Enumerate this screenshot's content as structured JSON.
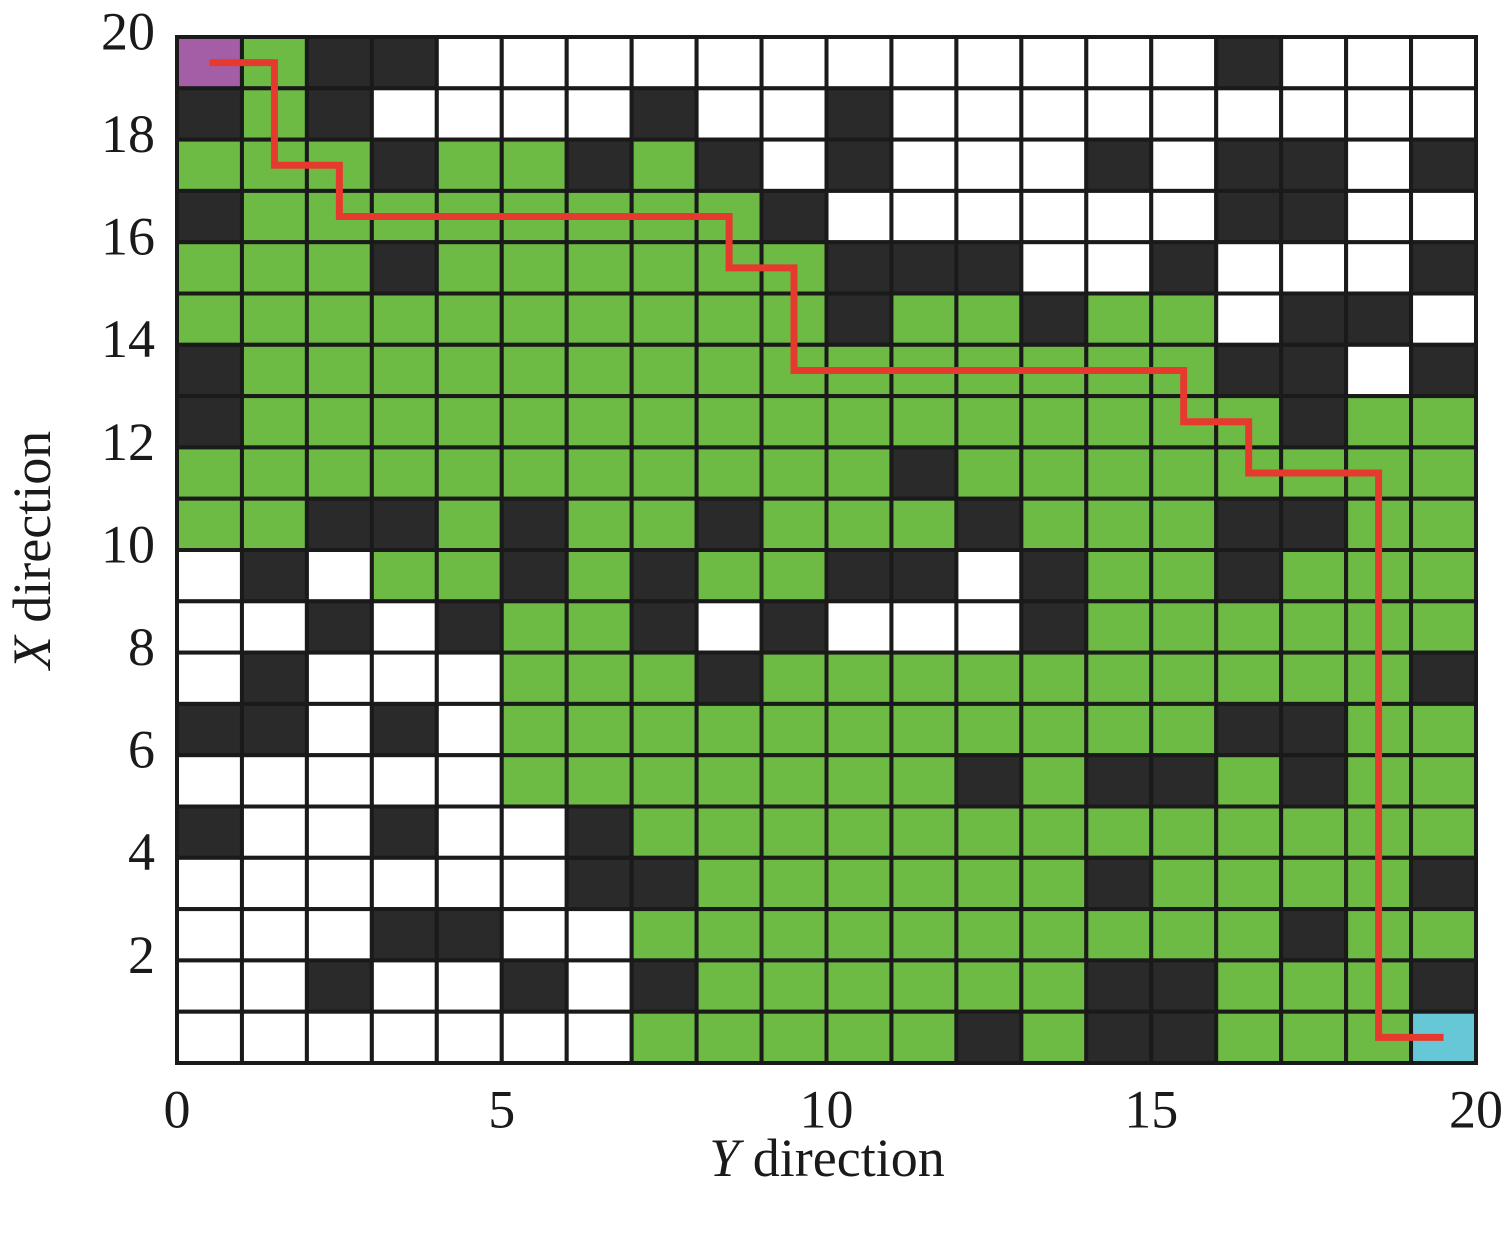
{
  "chart_data": {
    "type": "grid",
    "xlabel": "Y direction",
    "ylabel": "X direction",
    "xlim": [
      0,
      20
    ],
    "xticks": [
      0,
      5,
      10,
      15,
      20
    ],
    "ylim": [
      0,
      20
    ],
    "yticks": [
      2,
      4,
      6,
      8,
      10,
      12,
      14,
      16,
      18,
      20
    ],
    "cell_colors": [
      "#ffffff",
      "#2b2a2b",
      "#6dbb45",
      "#a45ea5",
      "#66c8d6"
    ],
    "grid": [
      [
        3,
        2,
        1,
        1,
        0,
        0,
        0,
        0,
        0,
        0,
        0,
        0,
        0,
        0,
        0,
        0,
        1,
        0,
        0,
        0
      ],
      [
        1,
        2,
        1,
        0,
        0,
        0,
        0,
        1,
        0,
        0,
        1,
        0,
        0,
        0,
        0,
        0,
        0,
        0,
        0,
        0
      ],
      [
        2,
        2,
        2,
        1,
        2,
        2,
        1,
        2,
        1,
        0,
        1,
        0,
        0,
        0,
        1,
        0,
        1,
        1,
        0,
        1
      ],
      [
        1,
        2,
        2,
        2,
        2,
        2,
        2,
        2,
        2,
        1,
        0,
        0,
        0,
        0,
        0,
        0,
        1,
        1,
        0,
        0
      ],
      [
        2,
        2,
        2,
        1,
        2,
        2,
        2,
        2,
        2,
        2,
        1,
        1,
        1,
        0,
        0,
        1,
        0,
        0,
        0,
        1
      ],
      [
        2,
        2,
        2,
        2,
        2,
        2,
        2,
        2,
        2,
        2,
        1,
        2,
        2,
        1,
        2,
        2,
        0,
        1,
        1,
        0
      ],
      [
        1,
        2,
        2,
        2,
        2,
        2,
        2,
        2,
        2,
        2,
        2,
        2,
        2,
        2,
        2,
        2,
        1,
        1,
        0,
        1
      ],
      [
        1,
        2,
        2,
        2,
        2,
        2,
        2,
        2,
        2,
        2,
        2,
        2,
        2,
        2,
        2,
        2,
        2,
        1,
        2,
        2
      ],
      [
        2,
        2,
        2,
        2,
        2,
        2,
        2,
        2,
        2,
        2,
        2,
        1,
        2,
        2,
        2,
        2,
        2,
        2,
        2,
        2
      ],
      [
        2,
        2,
        1,
        1,
        2,
        1,
        2,
        2,
        1,
        2,
        2,
        2,
        1,
        2,
        2,
        2,
        1,
        1,
        2,
        2
      ],
      [
        0,
        1,
        0,
        2,
        2,
        1,
        2,
        1,
        2,
        2,
        1,
        1,
        0,
        1,
        2,
        2,
        1,
        2,
        2,
        2
      ],
      [
        0,
        0,
        1,
        0,
        1,
        2,
        2,
        1,
        0,
        1,
        0,
        0,
        0,
        1,
        2,
        2,
        2,
        2,
        2,
        2
      ],
      [
        0,
        1,
        0,
        0,
        0,
        2,
        2,
        2,
        1,
        2,
        2,
        2,
        2,
        2,
        2,
        2,
        2,
        2,
        2,
        1
      ],
      [
        1,
        1,
        0,
        1,
        0,
        2,
        2,
        2,
        2,
        2,
        2,
        2,
        2,
        2,
        2,
        2,
        1,
        1,
        2,
        2
      ],
      [
        0,
        0,
        0,
        0,
        0,
        2,
        2,
        2,
        2,
        2,
        2,
        2,
        1,
        2,
        1,
        1,
        2,
        1,
        2,
        2
      ],
      [
        1,
        0,
        0,
        1,
        0,
        0,
        1,
        2,
        2,
        2,
        2,
        2,
        2,
        2,
        2,
        2,
        2,
        2,
        2,
        2
      ],
      [
        0,
        0,
        0,
        0,
        0,
        0,
        1,
        1,
        2,
        2,
        2,
        2,
        2,
        2,
        1,
        2,
        2,
        2,
        2,
        1
      ],
      [
        0,
        0,
        0,
        1,
        1,
        0,
        0,
        2,
        2,
        2,
        2,
        2,
        2,
        2,
        2,
        2,
        2,
        1,
        2,
        2
      ],
      [
        0,
        0,
        1,
        0,
        0,
        1,
        0,
        1,
        2,
        2,
        2,
        2,
        2,
        2,
        1,
        1,
        2,
        2,
        2,
        1
      ],
      [
        0,
        0,
        0,
        0,
        0,
        0,
        0,
        2,
        2,
        2,
        2,
        2,
        1,
        2,
        1,
        1,
        2,
        2,
        2,
        4
      ]
    ],
    "path": {
      "color": "#e63a2e",
      "x": [
        0.5,
        1.5,
        1.5,
        2.5,
        2.5,
        8.5,
        8.5,
        9.5,
        9.5,
        15.5,
        15.5,
        16.5,
        16.5,
        18.5,
        18.5,
        19.5
      ],
      "y": [
        19.5,
        19.5,
        17.5,
        17.5,
        16.5,
        16.5,
        15.5,
        15.5,
        13.5,
        13.5,
        12.5,
        12.5,
        11.5,
        11.5,
        0.5,
        0.5
      ]
    }
  }
}
